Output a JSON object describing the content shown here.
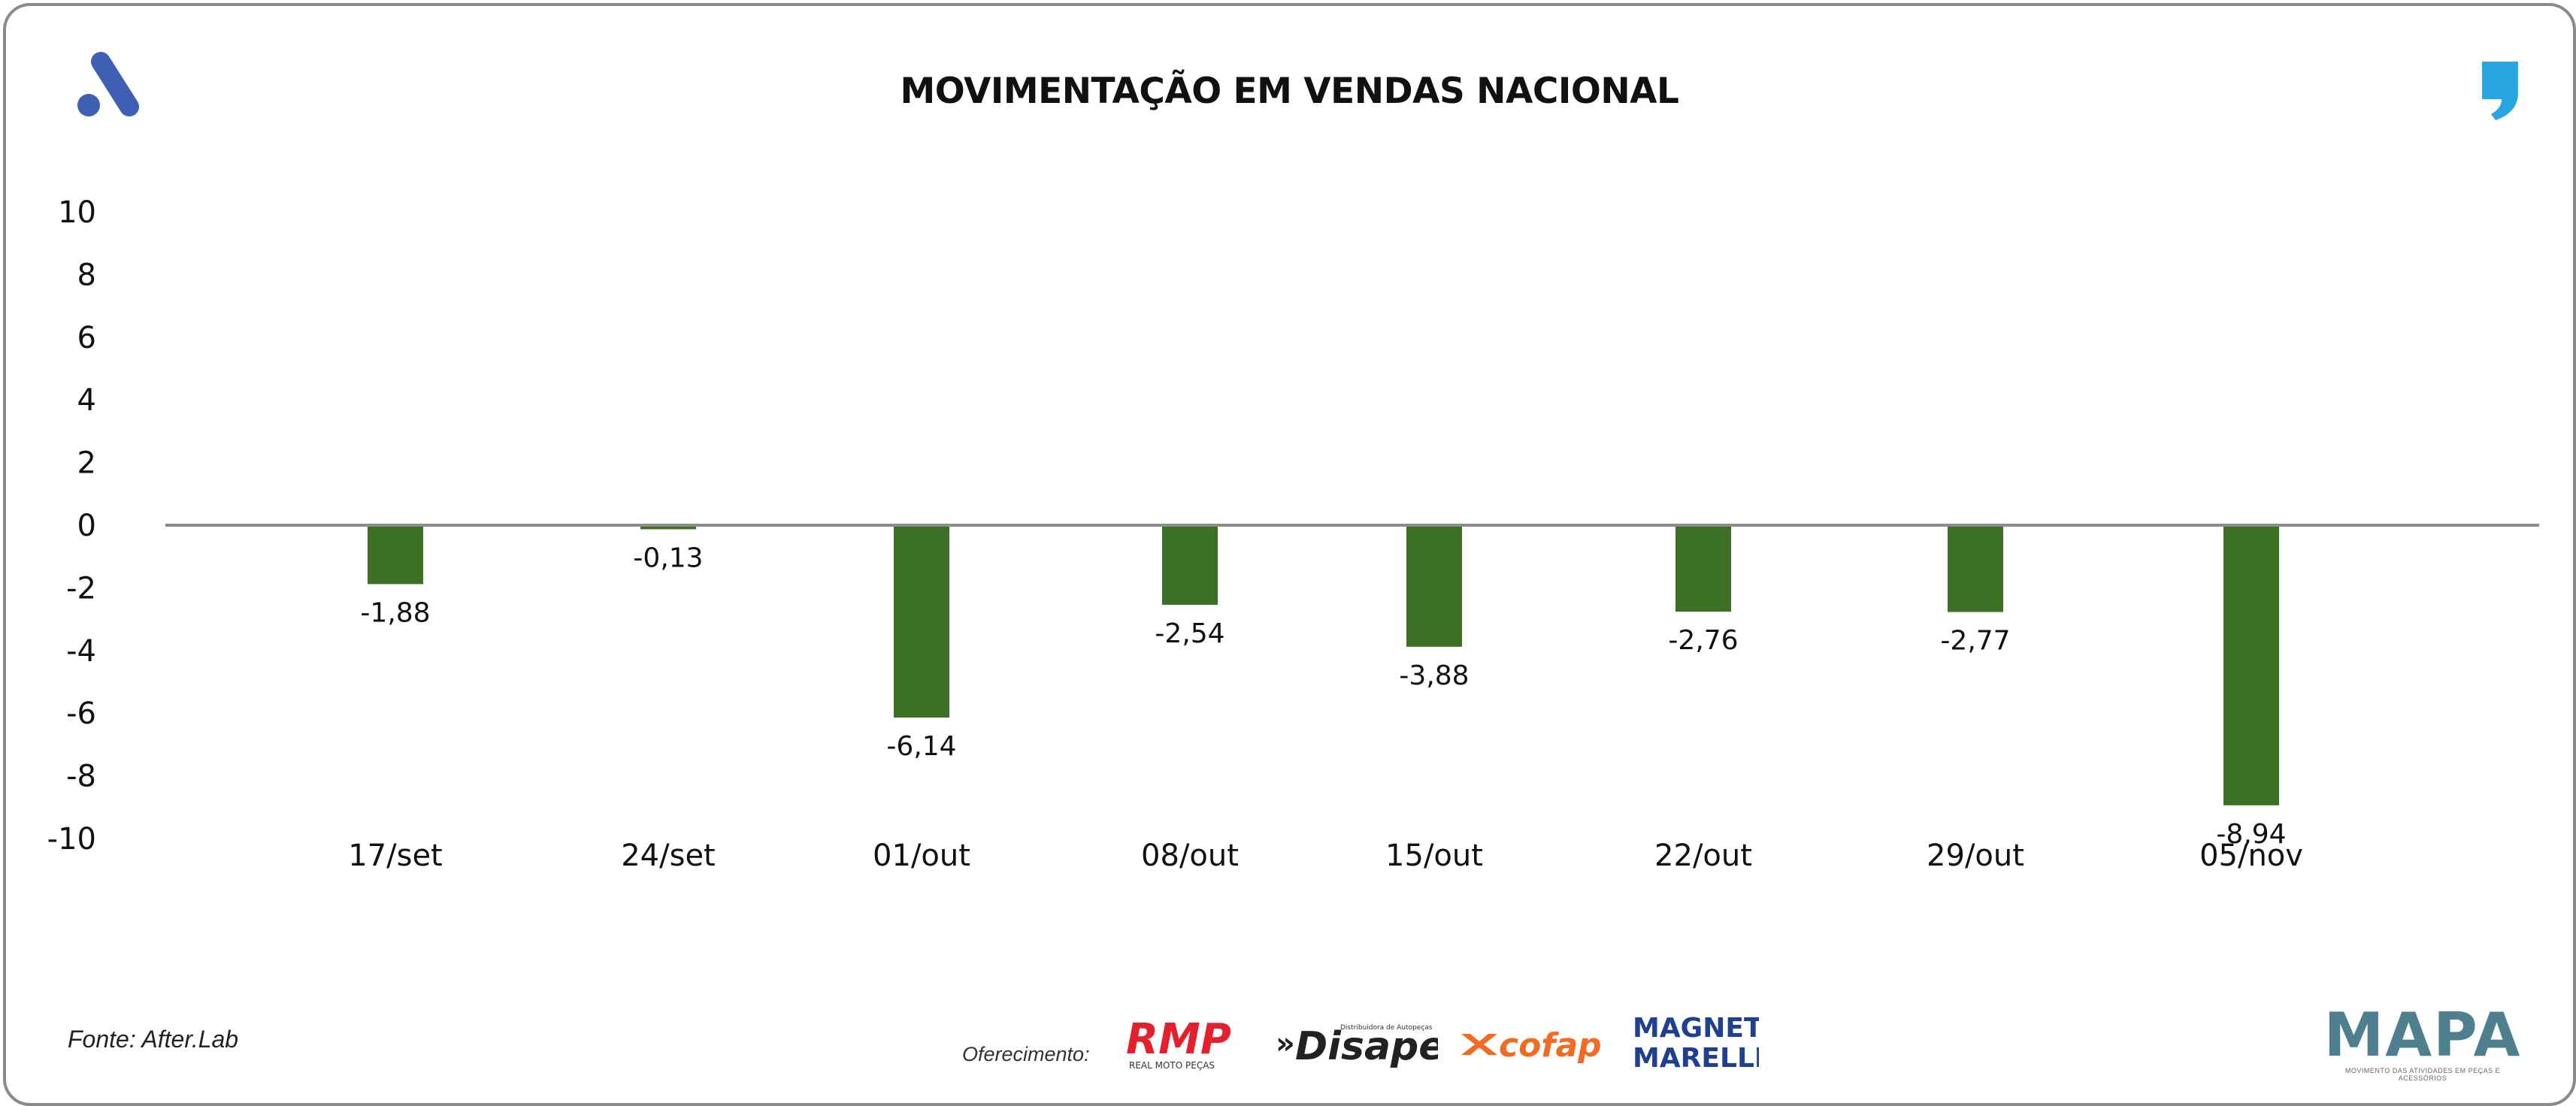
{
  "header": {
    "title": "MOVIMENTAÇÃO EM VENDAS NACIONAL"
  },
  "footer": {
    "source": "Fonte: After.Lab",
    "sponsor_label": "Oferecimento:",
    "sponsors": [
      "RMP",
      "REAL MOTO PEÇAS",
      "Disape",
      "Distribuidora de Autopeças",
      "cofap",
      "MAGNETI",
      "MARELLI"
    ],
    "brand": "MAPA",
    "brand_tagline": "MOVIMENTO DAS ATIVIDADES EM PEÇAS E ACESSÓRIOS"
  },
  "colors": {
    "bar": "#3b7025",
    "axis_line": "#8c8c8c",
    "text": "#111111",
    "logo_a": "#3f5fb5",
    "logo_quote": "#29a6e0",
    "rmp": "#e4202e",
    "cofap": "#f26b24",
    "magneti": "#1f3f8f"
  },
  "chart_data": {
    "type": "bar",
    "title": "MOVIMENTAÇÃO EM VENDAS NACIONAL",
    "xlabel": "",
    "ylabel": "",
    "categories": [
      "17/set",
      "24/set",
      "01/out",
      "08/out",
      "15/out",
      "22/out",
      "29/out",
      "05/nov"
    ],
    "values": [
      -1.88,
      -0.13,
      -6.14,
      -2.54,
      -3.88,
      -2.76,
      -2.77,
      -8.94
    ],
    "value_labels": [
      "-1,88",
      "-0,13",
      "-6,14",
      "-2,54",
      "-3,88",
      "-2,76",
      "-2,77",
      "-8,94"
    ],
    "ylim": [
      -10,
      10
    ],
    "yticks": [
      10,
      8,
      6,
      4,
      2,
      0,
      -2,
      -4,
      -6,
      -8,
      -10
    ],
    "ytick_labels": [
      "10",
      "8",
      "6",
      "4",
      "2",
      "0",
      "-2",
      "-4",
      "-6",
      "-8",
      "-10"
    ],
    "grid": false,
    "legend": "none"
  }
}
